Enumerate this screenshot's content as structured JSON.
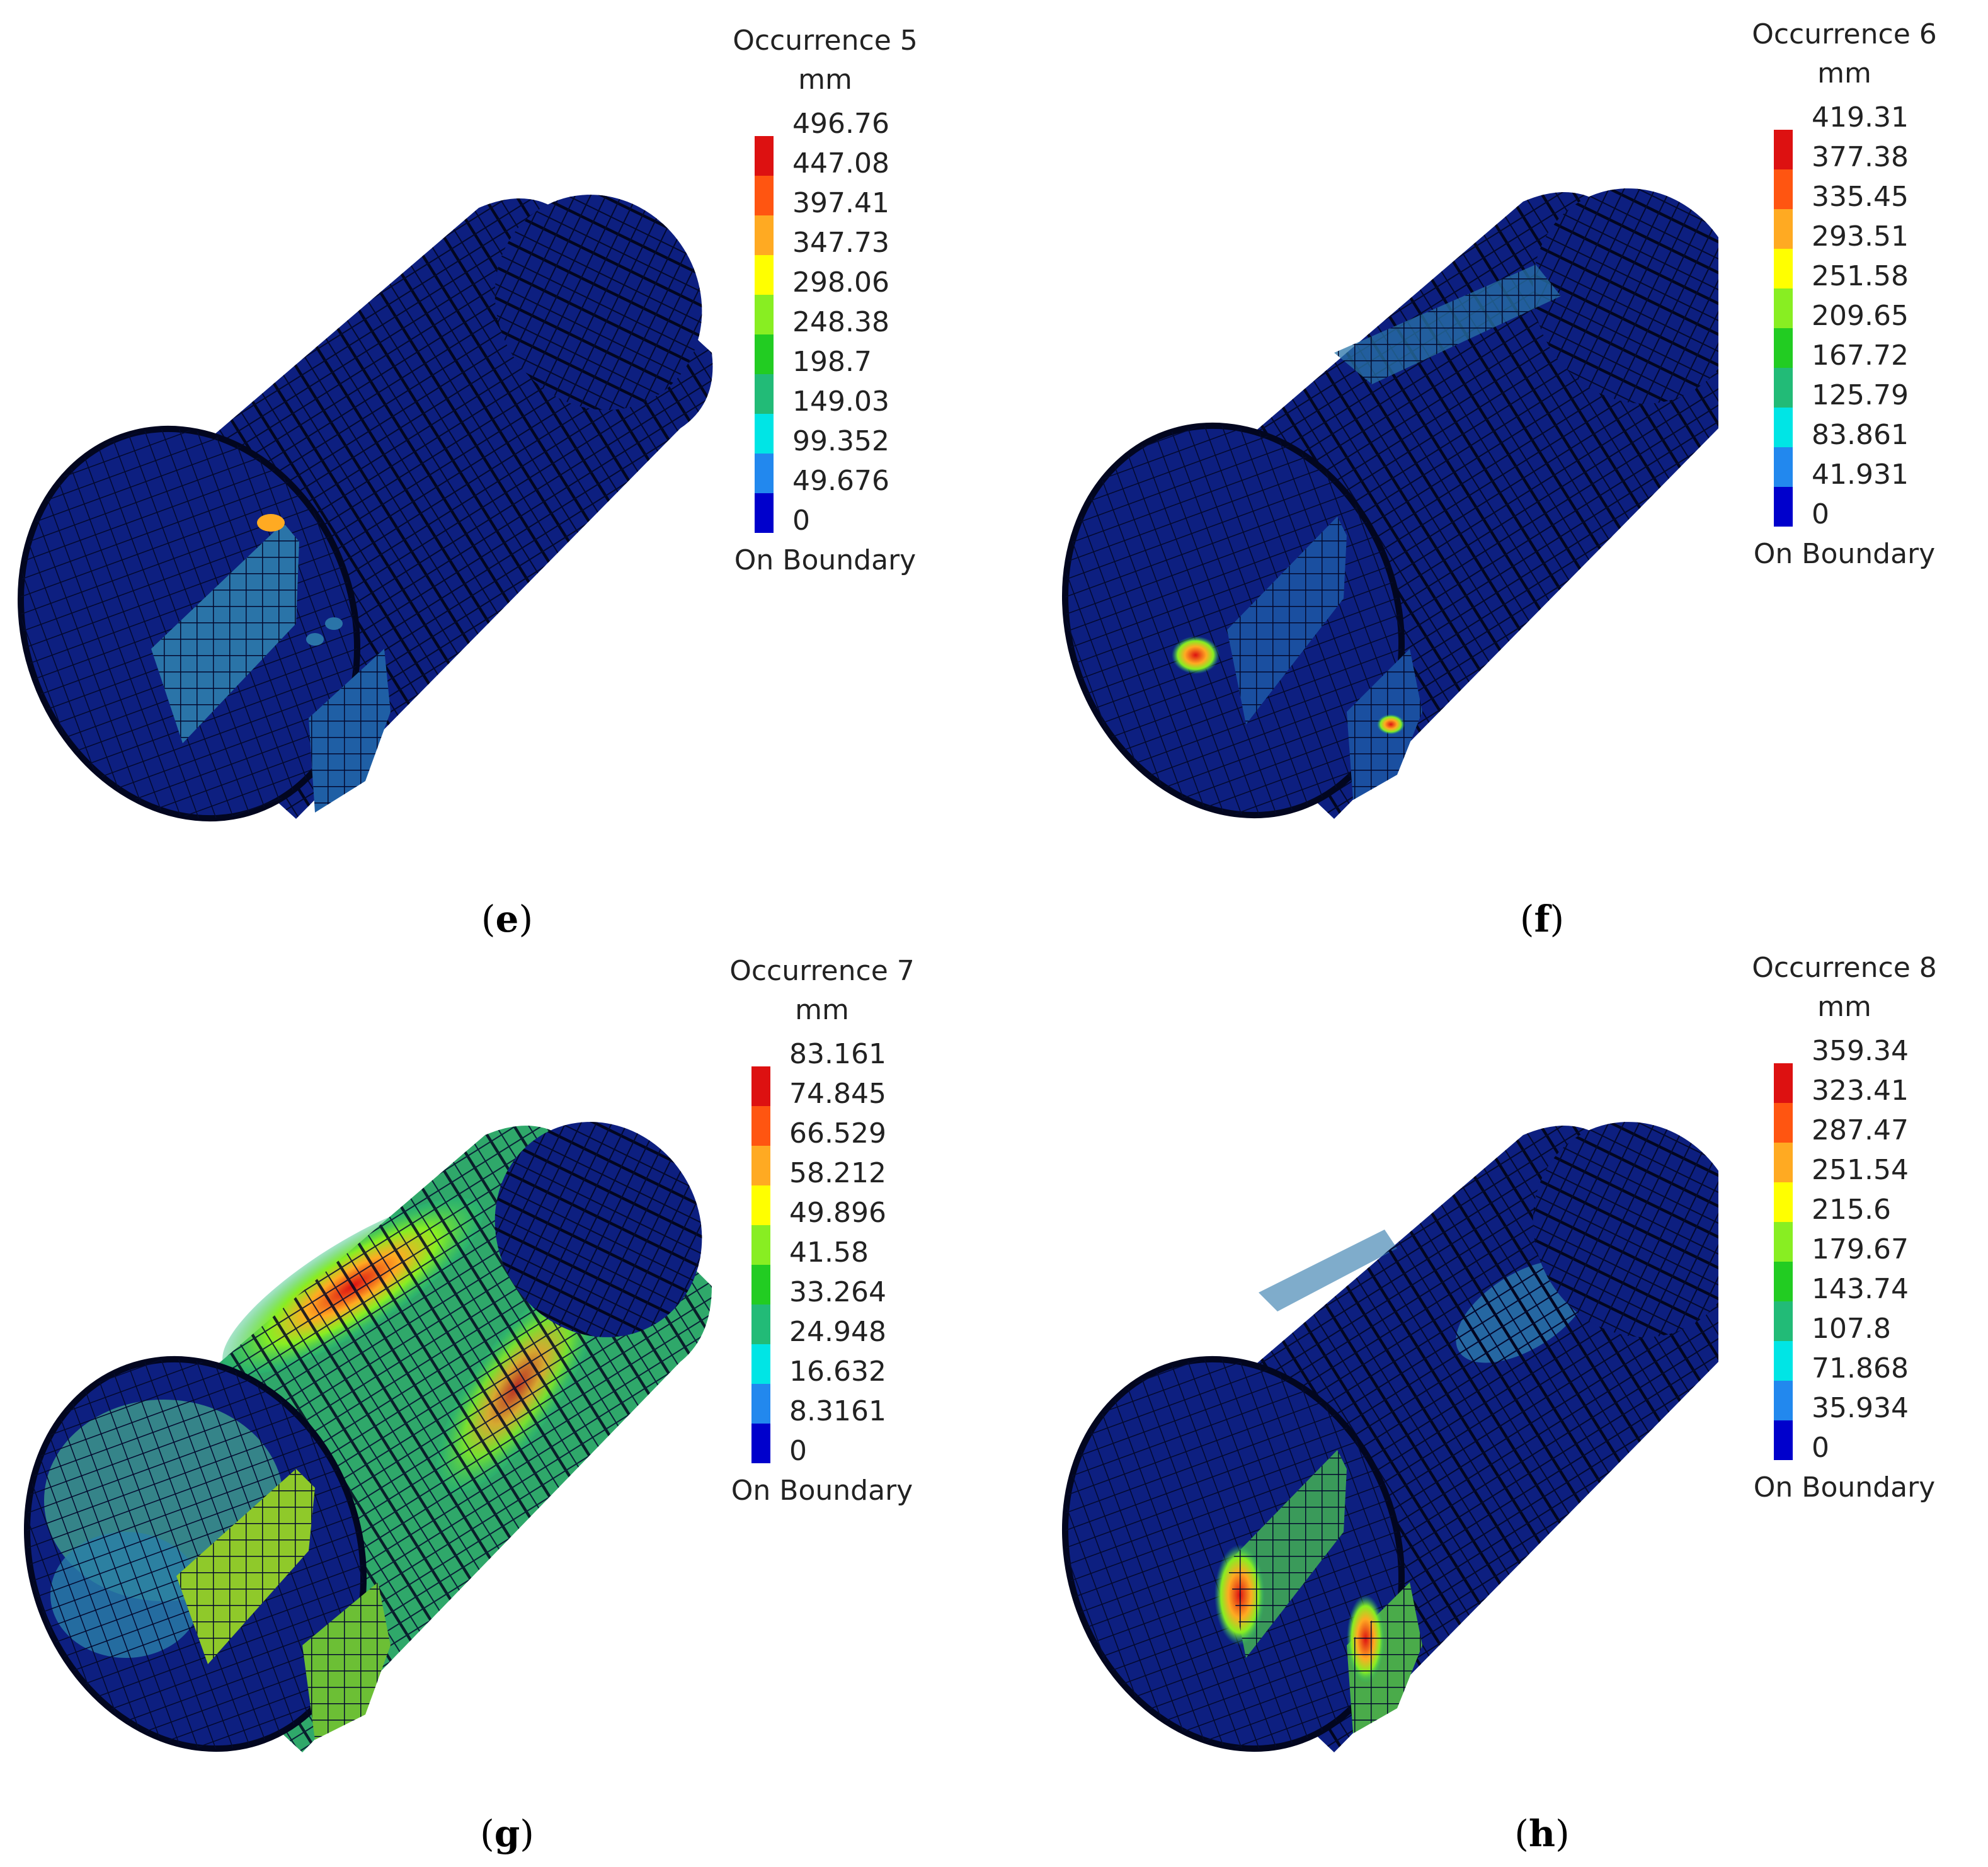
{
  "colors": {
    "scale": [
      "#dd1111",
      "#ff5511",
      "#ffaa22",
      "#ffff00",
      "#88ee22",
      "#22cc22",
      "#22bb77",
      "#00e5e5",
      "#2288ee",
      "#0000cc"
    ],
    "mesh_base": "#0d1f80",
    "mesh_line": "#03092e"
  },
  "panels": [
    {
      "id": "e",
      "caption_open": "(",
      "caption_letter": "e",
      "caption_close": ")",
      "legend_title": "Occurrence 5",
      "legend_unit": "mm",
      "legend_values": [
        "496.76",
        "447.08",
        "397.41",
        "347.73",
        "298.06",
        "248.38",
        "198.7",
        "149.03",
        "99.352",
        "49.676",
        "0"
      ],
      "legend_footer": "On Boundary"
    },
    {
      "id": "f",
      "caption_open": "(",
      "caption_letter": "f",
      "caption_close": ")",
      "legend_title": "Occurrence 6",
      "legend_unit": "mm",
      "legend_values": [
        "419.31",
        "377.38",
        "335.45",
        "293.51",
        "251.58",
        "209.65",
        "167.72",
        "125.79",
        "83.861",
        "41.931",
        "0"
      ],
      "legend_footer": "On Boundary"
    },
    {
      "id": "g",
      "caption_open": "(",
      "caption_letter": "g",
      "caption_close": ")",
      "legend_title": "Occurrence 7",
      "legend_unit": "mm",
      "legend_values": [
        "83.161",
        "74.845",
        "66.529",
        "58.212",
        "49.896",
        "41.58",
        "33.264",
        "24.948",
        "16.632",
        "8.3161",
        "0"
      ],
      "legend_footer": "On Boundary"
    },
    {
      "id": "h",
      "caption_open": "(",
      "caption_letter": "h",
      "caption_close": ")",
      "legend_title": "Occurrence 8",
      "legend_unit": "mm",
      "legend_values": [
        "359.34",
        "323.41",
        "287.47",
        "251.54",
        "215.6",
        "179.67",
        "143.74",
        "107.8",
        "71.868",
        "35.934",
        "0"
      ],
      "legend_footer": "On Boundary"
    }
  ]
}
